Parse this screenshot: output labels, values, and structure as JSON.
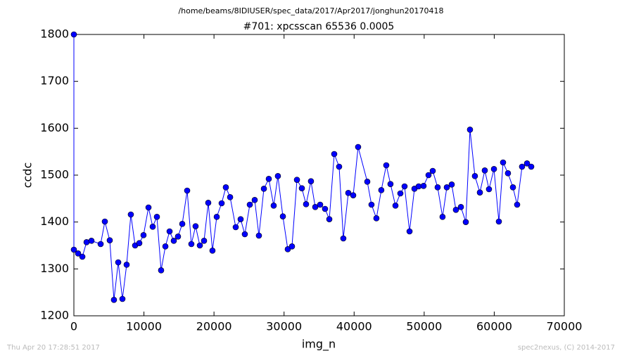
{
  "chart_data": {
    "type": "line",
    "suptitle": "/home/beams/8IDIUSER/spec_data/2017/Apr2017/jonghun20170418",
    "title": "#701: xpcsscan 65536 0.0005",
    "xlabel": "img_n",
    "ylabel": "ccdc",
    "color": "#0000ff",
    "x": [
      0,
      0,
      600,
      1210,
      1810,
      2510,
      3820,
      4420,
      5120,
      5720,
      6330,
      6930,
      7530,
      8130,
      8740,
      9340,
      9940,
      10650,
      11250,
      11850,
      12450,
      13060,
      13660,
      14260,
      14860,
      15470,
      16170,
      16770,
      17370,
      17980,
      18580,
      19180,
      19780,
      20390,
      21090,
      21690,
      22300,
      23100,
      23800,
      24400,
      25110,
      25810,
      26410,
      27120,
      27820,
      28520,
      29120,
      29830,
      30530,
      31130,
      31840,
      32540,
      33140,
      33840,
      34450,
      35150,
      35850,
      36460,
      37160,
      37860,
      38460,
      39170,
      39870,
      40570,
      41880,
      42480,
      43180,
      43880,
      44590,
      45190,
      45900,
      46600,
      47200,
      47910,
      48610,
      49210,
      49910,
      50620,
      51220,
      51920,
      52620,
      53230,
      53930,
      54530,
      55240,
      55940,
      56540,
      57240,
      57950,
      58650,
      59250,
      59960,
      60660,
      61260,
      61960,
      62670,
      63270,
      63970,
      64680,
      65280
    ],
    "values": [
      1800,
      1341,
      1333,
      1326,
      1357,
      1360,
      1353,
      1401,
      1361,
      1234,
      1314,
      1236,
      1309,
      1416,
      1350,
      1355,
      1372,
      1431,
      1390,
      1411,
      1297,
      1348,
      1380,
      1360,
      1369,
      1396,
      1467,
      1353,
      1391,
      1350,
      1360,
      1441,
      1339,
      1411,
      1440,
      1474,
      1453,
      1389,
      1406,
      1374,
      1437,
      1447,
      1371,
      1471,
      1492,
      1435,
      1498,
      1412,
      1342,
      1348,
      1490,
      1472,
      1438,
      1487,
      1432,
      1437,
      1428,
      1406,
      1545,
      1518,
      1365,
      1462,
      1457,
      1560,
      1486,
      1437,
      1408,
      1468,
      1521,
      1481,
      1435,
      1461,
      1476,
      1380,
      1471,
      1476,
      1477,
      1500,
      1509,
      1474,
      1411,
      1474,
      1480,
      1426,
      1432,
      1400,
      1597,
      1498,
      1463,
      1510,
      1470,
      1513,
      1401,
      1527,
      1504,
      1474,
      1437,
      1518,
      1525,
      1518
    ],
    "xlim": [
      0,
      70000
    ],
    "xticks": [
      0,
      10000,
      20000,
      30000,
      40000,
      50000,
      60000,
      70000
    ],
    "ylim": [
      1200,
      1800
    ],
    "yticks": [
      1200,
      1300,
      1400,
      1500,
      1600,
      1700,
      1800
    ],
    "grid": false
  },
  "footer": {
    "left": "Thu Apr 20 17:28:51 2017",
    "right": "spec2nexus, (C) 2014-2017"
  }
}
